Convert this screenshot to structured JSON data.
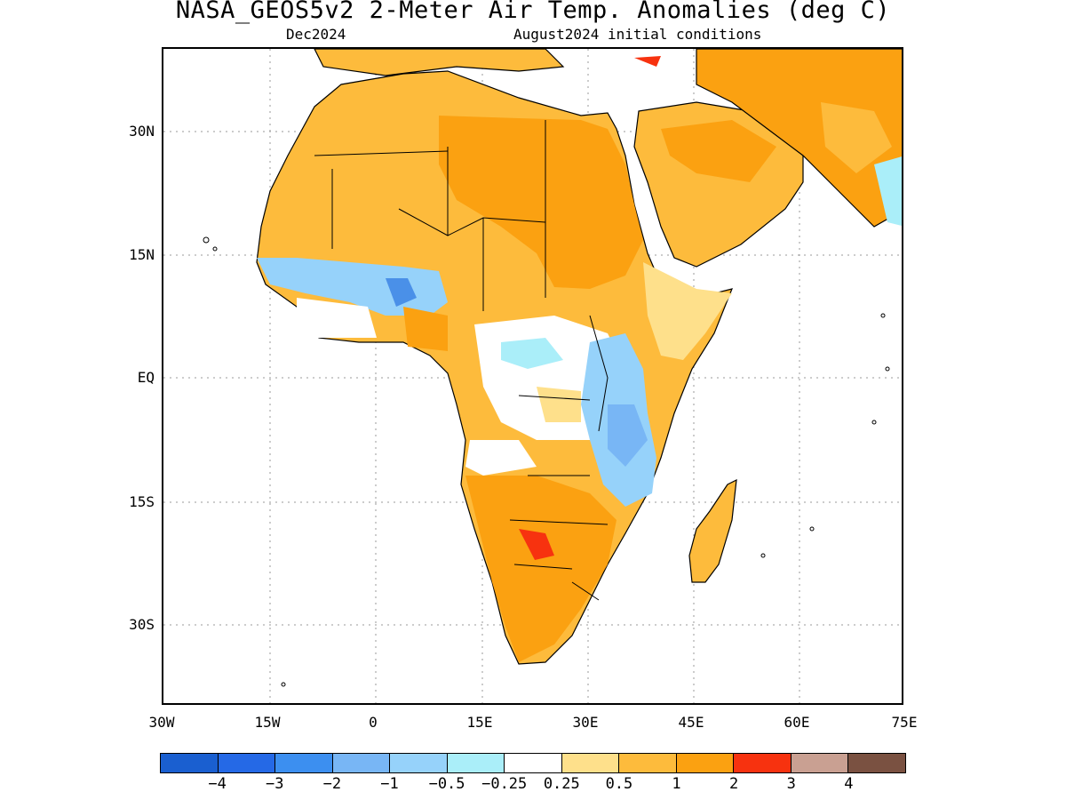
{
  "title": "NASA_GEOS5v2 2-Meter Air Temp. Anomalies (deg C)",
  "subtitle_left": "Dec2024",
  "subtitle_right": "August2024 initial conditions",
  "map": {
    "lat_labels": [
      "30N",
      "15N",
      "EQ",
      "15S",
      "30S"
    ],
    "lon_labels": [
      "30W",
      "15W",
      "0",
      "15E",
      "30E",
      "45E",
      "60E",
      "75E"
    ],
    "land_color": "#ffffff",
    "ocean_color": "#ffffff",
    "anomaly_colors": {
      "warm_light": "#fee08b",
      "warm_mid": "#fdbb3c",
      "warm_strong": "#fba111",
      "hot": "#f7320f",
      "cool_light": "#aaeef9",
      "cool_mid": "#96d2fa",
      "cool_strong": "#4a90e8"
    }
  },
  "legend": {
    "colors": [
      "#1a5fd0",
      "#2569e6",
      "#3c8ff0",
      "#78b6f5",
      "#96d2fa",
      "#aaeef9",
      "#ffffff",
      "#fee08b",
      "#fdbb3c",
      "#fba111",
      "#f7320f",
      "#c9a092",
      "#7a5141"
    ],
    "labels": [
      "−4",
      "−3",
      "−2",
      "−1",
      "−0.5",
      "−0.25",
      "0.25",
      "0.5",
      "1",
      "2",
      "3",
      "4"
    ]
  }
}
